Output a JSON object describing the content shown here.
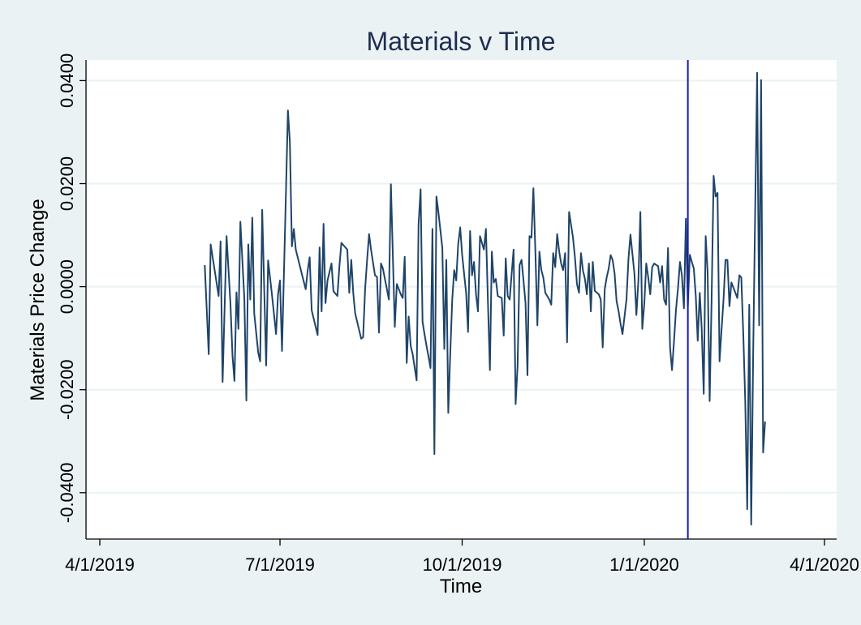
{
  "chart_data": {
    "type": "line",
    "title": "Materials v Time",
    "xlabel": "Time",
    "ylabel": "Materials Price Change",
    "xlim": [
      "2019-04-01",
      "2020-04-01"
    ],
    "ylim": [
      -0.049,
      0.044
    ],
    "x_ticks": [
      "2019-04-01",
      "2019-07-01",
      "2019-10-01",
      "2020-01-01",
      "2020-04-01"
    ],
    "x_tick_labels": [
      "4/1/2019",
      "7/1/2019",
      "10/1/2019",
      "1/1/2020",
      "4/1/2020"
    ],
    "y_ticks": [
      -0.04,
      -0.02,
      0.0,
      0.02,
      0.04
    ],
    "y_tick_labels": [
      "-0.0400",
      "-0.0200",
      "0.0000",
      "0.0200",
      "0.0400"
    ],
    "grid": true,
    "legend": "none",
    "reference_line": {
      "x": "2020-01-23",
      "color": "#1a1ab3"
    },
    "series": [
      {
        "color": "#1f4468",
        "points": [
          [
            "2019-05-24",
            0.0042
          ],
          [
            "2019-05-26",
            -0.0131
          ],
          [
            "2019-05-27",
            0.0082
          ],
          [
            "2019-05-29",
            0.0032
          ],
          [
            "2019-05-31",
            -0.0018
          ],
          [
            "2019-06-01",
            0.0088
          ],
          [
            "2019-06-02",
            -0.0185
          ],
          [
            "2019-06-04",
            0.0098
          ],
          [
            "2019-06-06",
            -0.0034
          ],
          [
            "2019-06-07",
            -0.0134
          ],
          [
            "2019-06-08",
            -0.0183
          ],
          [
            "2019-06-09",
            -0.0011
          ],
          [
            "2019-06-10",
            -0.0082
          ],
          [
            "2019-06-11",
            0.0126
          ],
          [
            "2019-06-13",
            -0.0023
          ],
          [
            "2019-06-14",
            -0.0221
          ],
          [
            "2019-06-15",
            0.0082
          ],
          [
            "2019-06-16",
            -0.0025
          ],
          [
            "2019-06-17",
            0.0134
          ],
          [
            "2019-06-18",
            -0.0052
          ],
          [
            "2019-06-20",
            -0.0128
          ],
          [
            "2019-06-21",
            -0.0145
          ],
          [
            "2019-06-22",
            0.0149
          ],
          [
            "2019-06-24",
            -0.0153
          ],
          [
            "2019-06-25",
            0.0051
          ],
          [
            "2019-06-27",
            -0.0018
          ],
          [
            "2019-06-29",
            -0.0092
          ],
          [
            "2019-06-30",
            -0.0015
          ],
          [
            "2019-07-01",
            0.0012
          ],
          [
            "2019-07-02",
            -0.0125
          ],
          [
            "2019-07-04",
            0.0178
          ],
          [
            "2019-07-05",
            0.0342
          ],
          [
            "2019-07-06",
            0.0281
          ],
          [
            "2019-07-07",
            0.0078
          ],
          [
            "2019-07-08",
            0.0112
          ],
          [
            "2019-07-09",
            0.0072
          ],
          [
            "2019-07-12",
            0.0025
          ],
          [
            "2019-07-14",
            -0.0005
          ],
          [
            "2019-07-15",
            0.0032
          ],
          [
            "2019-07-16",
            0.0057
          ],
          [
            "2019-07-17",
            -0.0046
          ],
          [
            "2019-07-20",
            -0.0094
          ],
          [
            "2019-07-21",
            0.0076
          ],
          [
            "2019-07-22",
            -0.0048
          ],
          [
            "2019-07-23",
            0.0122
          ],
          [
            "2019-07-24",
            -0.0032
          ],
          [
            "2019-07-25",
            0.0012
          ],
          [
            "2019-07-27",
            0.0045
          ],
          [
            "2019-07-28",
            -0.0009
          ],
          [
            "2019-07-30",
            -0.0018
          ],
          [
            "2019-07-31",
            0.0039
          ],
          [
            "2019-08-01",
            0.0085
          ],
          [
            "2019-08-04",
            0.0072
          ],
          [
            "2019-08-05",
            -0.0012
          ],
          [
            "2019-08-06",
            0.0052
          ],
          [
            "2019-08-07",
            -0.0012
          ],
          [
            "2019-08-08",
            -0.0052
          ],
          [
            "2019-08-11",
            -0.0101
          ],
          [
            "2019-08-12",
            -0.0098
          ],
          [
            "2019-08-13",
            -0.0005
          ],
          [
            "2019-08-14",
            0.0052
          ],
          [
            "2019-08-15",
            0.0102
          ],
          [
            "2019-08-16",
            0.0071
          ],
          [
            "2019-08-18",
            0.0022
          ],
          [
            "2019-08-19",
            0.0019
          ],
          [
            "2019-08-20",
            -0.0089
          ],
          [
            "2019-08-21",
            0.0045
          ],
          [
            "2019-08-22",
            0.0035
          ],
          [
            "2019-08-23",
            0.0015
          ],
          [
            "2019-08-24",
            -0.0005
          ],
          [
            "2019-08-25",
            -0.0025
          ],
          [
            "2019-08-26",
            0.0199
          ],
          [
            "2019-08-28",
            -0.0078
          ],
          [
            "2019-08-29",
            0.0005
          ],
          [
            "2019-08-31",
            -0.0015
          ],
          [
            "2019-09-01",
            -0.0022
          ],
          [
            "2019-09-02",
            0.0058
          ],
          [
            "2019-09-03",
            -0.0148
          ],
          [
            "2019-09-04",
            -0.0058
          ],
          [
            "2019-09-05",
            -0.0115
          ],
          [
            "2019-09-06",
            -0.0131
          ],
          [
            "2019-09-08",
            -0.0182
          ],
          [
            "2019-09-09",
            0.0121
          ],
          [
            "2019-09-10",
            0.0189
          ],
          [
            "2019-09-11",
            -0.0068
          ],
          [
            "2019-09-12",
            -0.0092
          ],
          [
            "2019-09-13",
            -0.0115
          ],
          [
            "2019-09-14",
            -0.0135
          ],
          [
            "2019-09-15",
            -0.0158
          ],
          [
            "2019-09-16",
            0.0112
          ],
          [
            "2019-09-17",
            -0.0325
          ],
          [
            "2019-09-18",
            0.0175
          ],
          [
            "2019-09-19",
            0.0145
          ],
          [
            "2019-09-21",
            0.0075
          ],
          [
            "2019-09-22",
            -0.0121
          ],
          [
            "2019-09-23",
            0.0052
          ],
          [
            "2019-09-24",
            -0.0245
          ],
          [
            "2019-09-25",
            -0.0128
          ],
          [
            "2019-09-26",
            -0.0025
          ],
          [
            "2019-09-27",
            0.0032
          ],
          [
            "2019-09-28",
            0.0012
          ],
          [
            "2019-09-29",
            0.0082
          ],
          [
            "2019-09-30",
            0.0115
          ],
          [
            "2019-10-01",
            0.0062
          ],
          [
            "2019-10-02",
            0.0025
          ],
          [
            "2019-10-03",
            -0.0012
          ],
          [
            "2019-10-04",
            -0.0088
          ],
          [
            "2019-10-05",
            0.0108
          ],
          [
            "2019-10-06",
            0.0022
          ],
          [
            "2019-10-07",
            0.0048
          ],
          [
            "2019-10-08",
            -0.0015
          ],
          [
            "2019-10-09",
            -0.0048
          ],
          [
            "2019-10-10",
            0.0098
          ],
          [
            "2019-10-11",
            0.0085
          ],
          [
            "2019-10-12",
            0.0072
          ],
          [
            "2019-10-13",
            0.0112
          ],
          [
            "2019-10-14",
            -0.0025
          ],
          [
            "2019-10-15",
            -0.0162
          ],
          [
            "2019-10-16",
            0.0068
          ],
          [
            "2019-10-17",
            0.0008
          ],
          [
            "2019-10-18",
            0.0015
          ],
          [
            "2019-10-19",
            -0.0018
          ],
          [
            "2019-10-21",
            -0.0022
          ],
          [
            "2019-10-22",
            -0.0095
          ],
          [
            "2019-10-23",
            0.0055
          ],
          [
            "2019-10-24",
            -0.0018
          ],
          [
            "2019-10-25",
            -0.0025
          ],
          [
            "2019-10-26",
            0.0025
          ],
          [
            "2019-10-27",
            0.0072
          ],
          [
            "2019-10-28",
            -0.0228
          ],
          [
            "2019-10-29",
            -0.0155
          ],
          [
            "2019-10-30",
            0.0042
          ],
          [
            "2019-10-31",
            0.0052
          ],
          [
            "2019-11-01",
            0.0012
          ],
          [
            "2019-11-02",
            -0.0032
          ],
          [
            "2019-11-03",
            -0.0172
          ],
          [
            "2019-11-04",
            0.0098
          ],
          [
            "2019-11-05",
            0.0095
          ],
          [
            "2019-11-06",
            0.0191
          ],
          [
            "2019-11-07",
            0.0065
          ],
          [
            "2019-11-08",
            -0.0075
          ],
          [
            "2019-11-09",
            0.0068
          ],
          [
            "2019-11-10",
            0.0032
          ],
          [
            "2019-11-11",
            0.0018
          ],
          [
            "2019-11-12",
            -0.0012
          ],
          [
            "2019-11-14",
            -0.0025
          ],
          [
            "2019-11-15",
            -0.0035
          ],
          [
            "2019-11-16",
            0.0065
          ],
          [
            "2019-11-17",
            0.0038
          ],
          [
            "2019-11-18",
            0.0102
          ],
          [
            "2019-11-19",
            0.0068
          ],
          [
            "2019-11-20",
            0.0045
          ],
          [
            "2019-11-21",
            0.0032
          ],
          [
            "2019-11-22",
            0.0065
          ],
          [
            "2019-11-23",
            -0.0108
          ],
          [
            "2019-11-24",
            0.0145
          ],
          [
            "2019-11-26",
            0.0095
          ],
          [
            "2019-11-27",
            0.0055
          ],
          [
            "2019-11-28",
            0.0005
          ],
          [
            "2019-11-29",
            -0.0012
          ],
          [
            "2019-11-30",
            0.0065
          ],
          [
            "2019-12-01",
            0.0032
          ],
          [
            "2019-12-02",
            0.0015
          ],
          [
            "2019-12-03",
            -0.0015
          ],
          [
            "2019-12-04",
            0.0045
          ],
          [
            "2019-12-05",
            -0.0048
          ],
          [
            "2019-12-06",
            0.0048
          ],
          [
            "2019-12-07",
            -0.0008
          ],
          [
            "2019-12-09",
            -0.0015
          ],
          [
            "2019-12-10",
            -0.0025
          ],
          [
            "2019-12-11",
            -0.0118
          ],
          [
            "2019-12-12",
            -0.0005
          ],
          [
            "2019-12-13",
            0.0018
          ],
          [
            "2019-12-14",
            0.0035
          ],
          [
            "2019-12-15",
            0.0061
          ],
          [
            "2019-12-16",
            0.0052
          ],
          [
            "2019-12-17",
            0.0025
          ],
          [
            "2019-12-18",
            -0.0028
          ],
          [
            "2019-12-19",
            -0.0048
          ],
          [
            "2019-12-20",
            -0.0072
          ],
          [
            "2019-12-21",
            -0.0092
          ],
          [
            "2019-12-23",
            -0.0025
          ],
          [
            "2019-12-24",
            0.0055
          ],
          [
            "2019-12-25",
            0.0101
          ],
          [
            "2019-12-27",
            0.0025
          ],
          [
            "2019-12-28",
            -0.0055
          ],
          [
            "2019-12-29",
            0.0012
          ],
          [
            "2019-12-30",
            0.0145
          ],
          [
            "2019-12-31",
            -0.0082
          ],
          [
            "2020-01-01",
            -0.0032
          ],
          [
            "2020-01-02",
            0.0045
          ],
          [
            "2020-01-03",
            0.0018
          ],
          [
            "2020-01-04",
            -0.0015
          ],
          [
            "2020-01-05",
            0.0038
          ],
          [
            "2020-01-06",
            0.0045
          ],
          [
            "2020-01-07",
            0.0042
          ],
          [
            "2020-01-08",
            0.004
          ],
          [
            "2020-01-09",
            0.0008
          ],
          [
            "2020-01-10",
            0.004
          ],
          [
            "2020-01-11",
            -0.0025
          ],
          [
            "2020-01-12",
            -0.0035
          ],
          [
            "2020-01-13",
            0.0075
          ],
          [
            "2020-01-14",
            -0.0118
          ],
          [
            "2020-01-15",
            -0.0162
          ],
          [
            "2020-01-16",
            -0.0105
          ],
          [
            "2020-01-17",
            -0.0045
          ],
          [
            "2020-01-18",
            -0.0005
          ],
          [
            "2020-01-19",
            0.0048
          ],
          [
            "2020-01-20",
            0.0022
          ],
          [
            "2020-01-21",
            -0.0042
          ],
          [
            "2020-01-22",
            0.0132
          ],
          [
            "2020-01-23",
            -0.0038
          ],
          [
            "2020-01-24",
            0.0062
          ],
          [
            "2020-01-25",
            0.0048
          ],
          [
            "2020-01-26",
            0.0035
          ],
          [
            "2020-01-27",
            -0.0018
          ],
          [
            "2020-01-28",
            -0.0105
          ],
          [
            "2020-01-29",
            -0.0012
          ],
          [
            "2020-01-30",
            -0.0082
          ],
          [
            "2020-01-31",
            -0.0208
          ],
          [
            "2020-02-01",
            0.0098
          ],
          [
            "2020-02-02",
            0.0028
          ],
          [
            "2020-02-03",
            -0.0222
          ],
          [
            "2020-02-04",
            -0.0025
          ],
          [
            "2020-02-05",
            0.0215
          ],
          [
            "2020-02-06",
            0.0175
          ],
          [
            "2020-02-07",
            0.0182
          ],
          [
            "2020-02-08",
            -0.0145
          ],
          [
            "2020-02-09",
            -0.0085
          ],
          [
            "2020-02-10",
            -0.0025
          ],
          [
            "2020-02-11",
            0.0052
          ],
          [
            "2020-02-12",
            0.0052
          ],
          [
            "2020-02-13",
            -0.0038
          ],
          [
            "2020-02-14",
            0.0008
          ],
          [
            "2020-02-16",
            -0.0012
          ],
          [
            "2020-02-17",
            -0.0022
          ],
          [
            "2020-02-18",
            0.0022
          ],
          [
            "2020-02-19",
            0.0018
          ],
          [
            "2020-02-20",
            -0.0095
          ],
          [
            "2020-02-21",
            -0.0225
          ],
          [
            "2020-02-22",
            -0.0432
          ],
          [
            "2020-02-23",
            -0.0035
          ],
          [
            "2020-02-24",
            -0.0462
          ],
          [
            "2020-02-25",
            -0.0121
          ],
          [
            "2020-02-27",
            0.0415
          ],
          [
            "2020-02-28",
            -0.0075
          ],
          [
            "2020-02-29",
            0.0401
          ],
          [
            "2020-03-01",
            -0.0322
          ],
          [
            "2020-03-02",
            -0.0262
          ]
        ]
      }
    ]
  }
}
